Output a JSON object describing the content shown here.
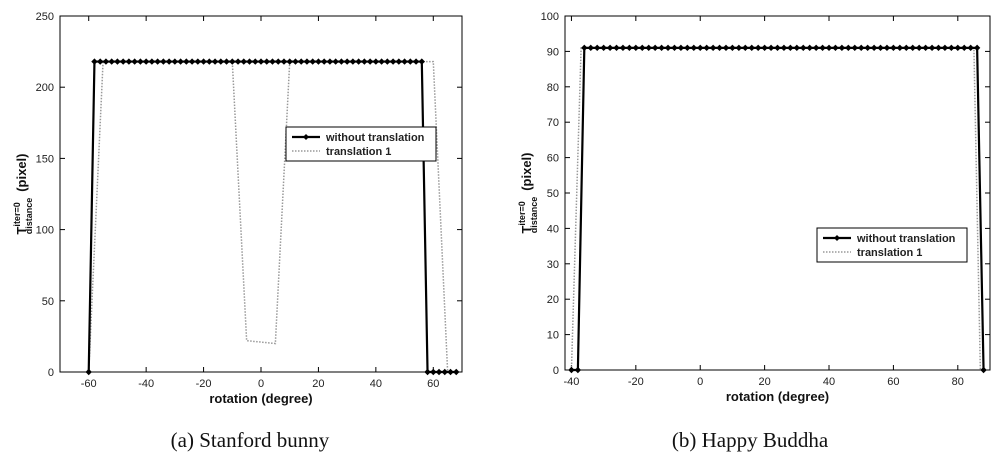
{
  "chart_data": [
    {
      "type": "line",
      "caption": "(a) Stanford bunny",
      "xlabel": "rotation (degree)",
      "ylabel": "(pixel)",
      "ylabel_symbol": "T",
      "ylabel_sup": "iter=0",
      "ylabel_sub": "distance",
      "xlim": [
        -70,
        70
      ],
      "ylim": [
        0,
        250
      ],
      "xticks": [
        -60,
        -40,
        -20,
        0,
        20,
        40,
        60
      ],
      "yticks": [
        0,
        50,
        100,
        150,
        200,
        250
      ],
      "legend_position": "center-right",
      "series": [
        {
          "name": "without translation",
          "style": "solid-marker",
          "color": "#000000",
          "x": [
            -60,
            -58,
            -56,
            -54,
            -52,
            -50,
            -48,
            -46,
            -44,
            -42,
            -40,
            -38,
            -36,
            -34,
            -32,
            -30,
            -28,
            -26,
            -24,
            -22,
            -20,
            -18,
            -16,
            -14,
            -12,
            -10,
            -8,
            -6,
            -4,
            -2,
            0,
            2,
            4,
            6,
            8,
            10,
            12,
            14,
            16,
            18,
            20,
            22,
            24,
            26,
            28,
            30,
            32,
            34,
            36,
            38,
            40,
            42,
            44,
            46,
            48,
            50,
            52,
            54,
            56,
            58,
            60,
            62,
            64,
            66,
            68
          ],
          "y": [
            0,
            218,
            218,
            218,
            218,
            218,
            218,
            218,
            218,
            218,
            218,
            218,
            218,
            218,
            218,
            218,
            218,
            218,
            218,
            218,
            218,
            218,
            218,
            218,
            218,
            218,
            218,
            218,
            218,
            218,
            218,
            218,
            218,
            218,
            218,
            218,
            218,
            218,
            218,
            218,
            218,
            218,
            218,
            218,
            218,
            218,
            218,
            218,
            218,
            218,
            218,
            218,
            218,
            218,
            218,
            218,
            218,
            218,
            218,
            0,
            0,
            0,
            0,
            0,
            0
          ]
        },
        {
          "name": "translation 1",
          "style": "dotted",
          "color": "#999999",
          "x": [
            -60,
            -55,
            -10,
            -5,
            5,
            10,
            60,
            65
          ],
          "y": [
            0,
            218,
            218,
            22,
            20,
            218,
            218,
            0
          ]
        }
      ]
    },
    {
      "type": "line",
      "caption": "(b) Happy Buddha",
      "xlabel": "rotation (degree)",
      "ylabel": "(pixel)",
      "ylabel_symbol": "T",
      "ylabel_sup": "iter=0",
      "ylabel_sub": "distance",
      "xlim": [
        -42,
        90
      ],
      "ylim": [
        0,
        100
      ],
      "xticks": [
        -40,
        -20,
        0,
        20,
        40,
        60,
        80
      ],
      "yticks": [
        0,
        10,
        20,
        30,
        40,
        50,
        60,
        70,
        80,
        90,
        100
      ],
      "legend_position": "center-right",
      "series": [
        {
          "name": "without translation",
          "style": "solid-marker",
          "color": "#000000",
          "x": [
            -40,
            -38,
            -36,
            -34,
            -32,
            -30,
            -28,
            -26,
            -24,
            -22,
            -20,
            -18,
            -16,
            -14,
            -12,
            -10,
            -8,
            -6,
            -4,
            -2,
            0,
            2,
            4,
            6,
            8,
            10,
            12,
            14,
            16,
            18,
            20,
            22,
            24,
            26,
            28,
            30,
            32,
            34,
            36,
            38,
            40,
            42,
            44,
            46,
            48,
            50,
            52,
            54,
            56,
            58,
            60,
            62,
            64,
            66,
            68,
            70,
            72,
            74,
            76,
            78,
            80,
            82,
            84,
            86,
            88
          ],
          "y": [
            0,
            0,
            91,
            91,
            91,
            91,
            91,
            91,
            91,
            91,
            91,
            91,
            91,
            91,
            91,
            91,
            91,
            91,
            91,
            91,
            91,
            91,
            91,
            91,
            91,
            91,
            91,
            91,
            91,
            91,
            91,
            91,
            91,
            91,
            91,
            91,
            91,
            91,
            91,
            91,
            91,
            91,
            91,
            91,
            91,
            91,
            91,
            91,
            91,
            91,
            91,
            91,
            91,
            91,
            91,
            91,
            91,
            91,
            91,
            91,
            91,
            91,
            91,
            91,
            0
          ]
        },
        {
          "name": "translation 1",
          "style": "dotted",
          "color": "#999999",
          "x": [
            -40,
            -37,
            85,
            87
          ],
          "y": [
            0,
            91,
            91,
            0
          ]
        }
      ]
    }
  ]
}
